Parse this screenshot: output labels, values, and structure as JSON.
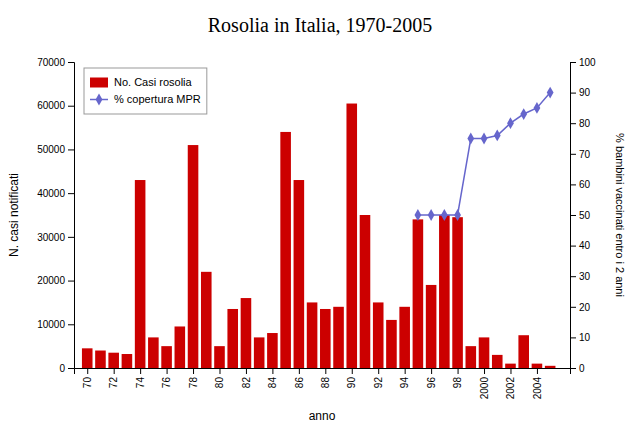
{
  "chart_data": {
    "type": "bar",
    "title": "Rosolia in Italia, 1970-2005",
    "xlabel": "anno",
    "ylabel": "N. casi notificati",
    "y2label": "% bambini vaccinati entro i 2 anni",
    "series": [
      {
        "name": "No. Casi rosolia",
        "type": "bar",
        "color": "#CC0000",
        "x": [
          1970,
          1971,
          1972,
          1973,
          1974,
          1975,
          1976,
          1977,
          1978,
          1979,
          1980,
          1981,
          1982,
          1983,
          1984,
          1985,
          1986,
          1987,
          1988,
          1989,
          1990,
          1991,
          1992,
          1993,
          1994,
          1995,
          1996,
          1997,
          1998,
          1999,
          2000,
          2001,
          2002,
          2003,
          2004,
          2005
        ],
        "values": [
          4500,
          4000,
          3500,
          3200,
          43000,
          7000,
          5000,
          9500,
          51000,
          22000,
          5000,
          13500,
          16000,
          7000,
          8000,
          54000,
          43000,
          15000,
          13500,
          14000,
          60500,
          35000,
          15000,
          11000,
          14000,
          34000,
          19000,
          35000,
          34500,
          5000,
          7000,
          3000,
          1000,
          7500,
          1000,
          500
        ]
      },
      {
        "name": "% copertura MPR",
        "type": "line",
        "axis": "y2",
        "color": "#6666CC",
        "marker": "diamond",
        "line_style": "solid",
        "x": [
          1995,
          1996,
          1997,
          1998,
          1999,
          2000,
          2001,
          2002,
          2003,
          2004,
          2005
        ],
        "values": [
          50,
          50,
          50,
          50,
          75,
          75,
          76,
          80,
          83,
          85,
          90
        ]
      }
    ],
    "xlim": [
      1969.0,
      2006.5
    ],
    "xticks": [
      {
        "value": 1970,
        "label": "70"
      },
      {
        "value": 1972,
        "label": "72"
      },
      {
        "value": 1974,
        "label": "74"
      },
      {
        "value": 1976,
        "label": "76"
      },
      {
        "value": 1978,
        "label": "78"
      },
      {
        "value": 1980,
        "label": "80"
      },
      {
        "value": 1982,
        "label": "82"
      },
      {
        "value": 1984,
        "label": "84"
      },
      {
        "value": 1986,
        "label": "86"
      },
      {
        "value": 1988,
        "label": "88"
      },
      {
        "value": 1990,
        "label": "90"
      },
      {
        "value": 1992,
        "label": "92"
      },
      {
        "value": 1994,
        "label": "94"
      },
      {
        "value": 1996,
        "label": "96"
      },
      {
        "value": 1998,
        "label": "98"
      },
      2000,
      2002,
      2004
    ],
    "ylim": [
      0,
      70000
    ],
    "yticks": [
      0,
      10000,
      20000,
      30000,
      40000,
      50000,
      60000,
      70000
    ],
    "y2lim": [
      0,
      100
    ],
    "y2ticks": [
      0,
      10,
      20,
      30,
      40,
      50,
      60,
      70,
      80,
      90,
      100
    ],
    "grid": false,
    "legend": "upper left"
  }
}
